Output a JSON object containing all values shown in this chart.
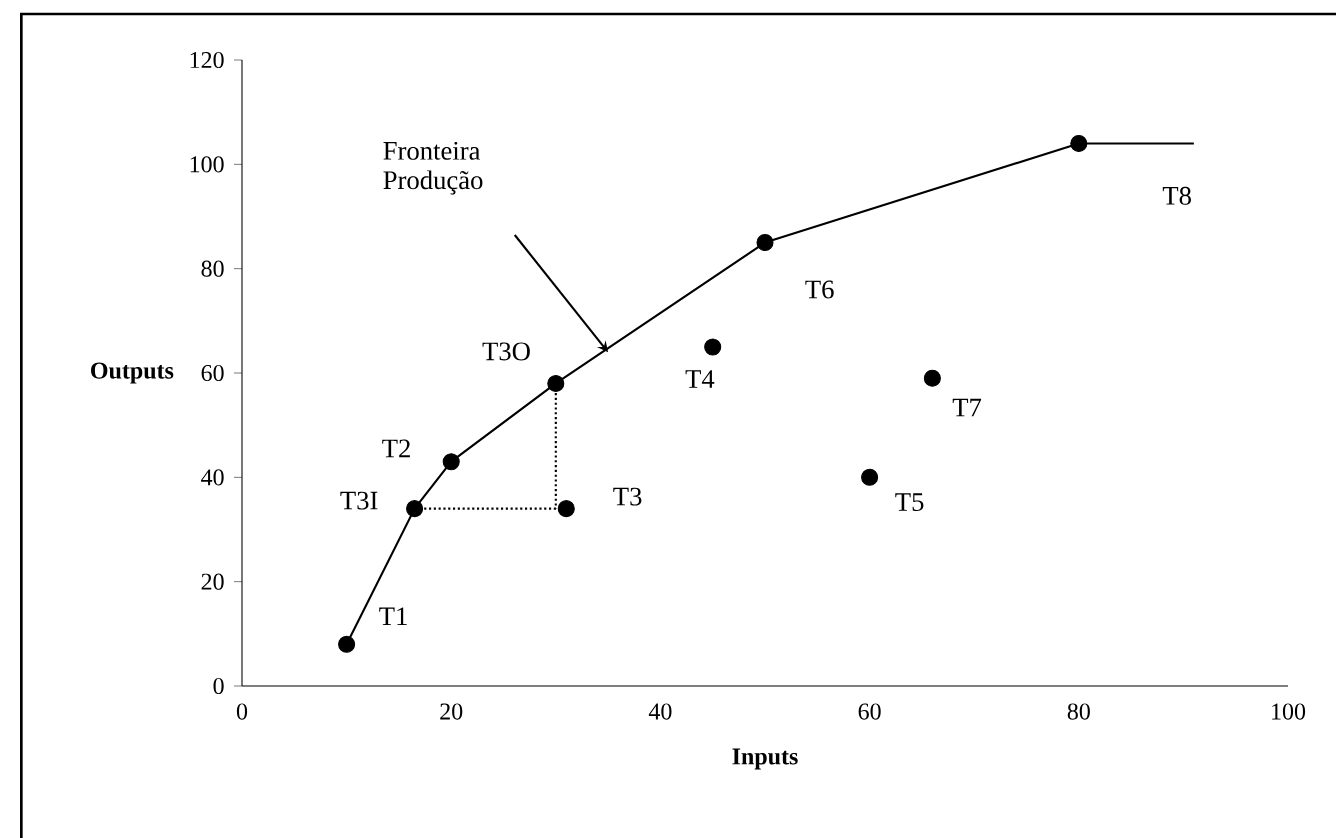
{
  "chart_data": {
    "type": "scatter",
    "xlabel": "Inputs",
    "ylabel": "Outputs",
    "xlim": [
      0,
      100
    ],
    "ylim": [
      0,
      120
    ],
    "xticks": [
      0,
      20,
      40,
      60,
      80,
      100
    ],
    "yticks": [
      0,
      20,
      40,
      60,
      80,
      100,
      120
    ],
    "grid": false,
    "series": [
      {
        "type": "line",
        "color": "#000000",
        "marker": "none",
        "x": [
          10,
          16.5,
          20,
          30,
          50,
          80,
          91
        ],
        "values": [
          8,
          34,
          43,
          58,
          85,
          104,
          104
        ]
      },
      {
        "type": "line",
        "color": "#000000",
        "marker": "none",
        "line_style": "dotted",
        "x": [
          16.5,
          31
        ],
        "values": [
          34,
          34
        ]
      },
      {
        "type": "line",
        "color": "#000000",
        "marker": "none",
        "line_style": "dotted",
        "x": [
          30,
          30
        ],
        "values": [
          58,
          34
        ]
      },
      {
        "color": "#000000",
        "marker": "circle",
        "x": [
          10,
          16.5,
          20,
          30,
          31,
          45,
          50,
          60,
          66,
          80
        ],
        "values": [
          8,
          34,
          43,
          58,
          34,
          65,
          85,
          40,
          59,
          104
        ]
      }
    ],
    "annotations": [
      {
        "text": "T1",
        "x": 10,
        "y": 8
      },
      {
        "text": "T2",
        "x": 20,
        "y": 43
      },
      {
        "text": "T3I",
        "x": 16.5,
        "y": 34
      },
      {
        "text": "T3O",
        "x": 30,
        "y": 58
      },
      {
        "text": "T3",
        "x": 31,
        "y": 34
      },
      {
        "text": "T4",
        "x": 45,
        "y": 65
      },
      {
        "text": "T5",
        "x": 60,
        "y": 40
      },
      {
        "text": "T6",
        "x": 50,
        "y": 85
      },
      {
        "text": "T7",
        "x": 66,
        "y": 59
      },
      "T8",
      "Fronteira Produção"
    ]
  }
}
